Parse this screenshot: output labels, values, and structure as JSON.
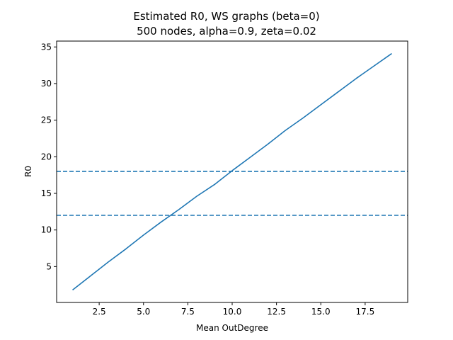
{
  "chart_data": {
    "type": "line",
    "title": "Estimated R0, WS graphs (beta=0)",
    "subtitle": "500 nodes, alpha=0.9, zeta=0.02",
    "xlabel": "Mean OutDegree",
    "ylabel": "R0",
    "xlim": [
      0.1,
      19.9
    ],
    "ylim": [
      0.1,
      35.8
    ],
    "xticks": [
      2.5,
      5.0,
      7.5,
      10.0,
      12.5,
      15.0,
      17.5
    ],
    "xtick_labels": [
      "2.5",
      "5.0",
      "7.5",
      "10.0",
      "12.5",
      "15.0",
      "17.5"
    ],
    "yticks": [
      5,
      10,
      15,
      20,
      25,
      30,
      35
    ],
    "ytick_labels": [
      "5",
      "10",
      "15",
      "20",
      "25",
      "30",
      "35"
    ],
    "grid": false,
    "series": [
      {
        "color": "#1f77b4",
        "style": "solid",
        "x": [
          1,
          2,
          3,
          4,
          5,
          6,
          7,
          8,
          9,
          10,
          11,
          12,
          13,
          14,
          15,
          16,
          17,
          18,
          19
        ],
        "y": [
          1.8,
          3.7,
          5.6,
          7.4,
          9.3,
          11.1,
          12.8,
          14.6,
          16.2,
          18.1,
          19.9,
          21.7,
          23.6,
          25.3,
          27.1,
          28.9,
          30.7,
          32.4,
          34.1
        ]
      }
    ],
    "hlines": [
      {
        "y": 18,
        "color": "#1f77b4",
        "style": "dashed"
      },
      {
        "y": 12,
        "color": "#1f77b4",
        "style": "dashed"
      }
    ]
  }
}
